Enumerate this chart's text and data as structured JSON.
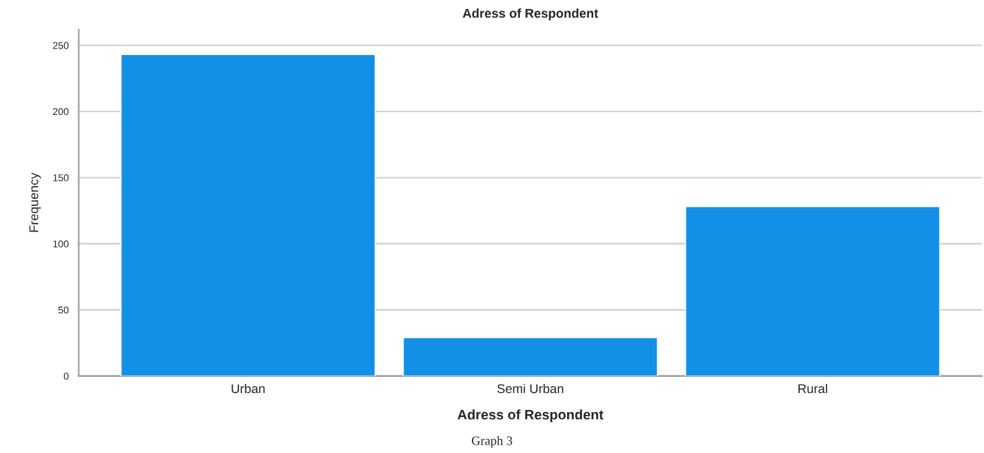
{
  "chart_data": {
    "type": "bar",
    "title": "Adress of Respondent",
    "xlabel": "Adress of Respondent",
    "ylabel": "Frequency",
    "categories": [
      "Urban",
      "Semi Urban",
      "Rural"
    ],
    "values": [
      243,
      29,
      128
    ],
    "color": "#1190e6",
    "ylim": [
      0,
      262
    ],
    "yticks": [
      0,
      50,
      100,
      150,
      200,
      250
    ],
    "grid": "y",
    "annotations": [
      "Graph 3"
    ]
  }
}
